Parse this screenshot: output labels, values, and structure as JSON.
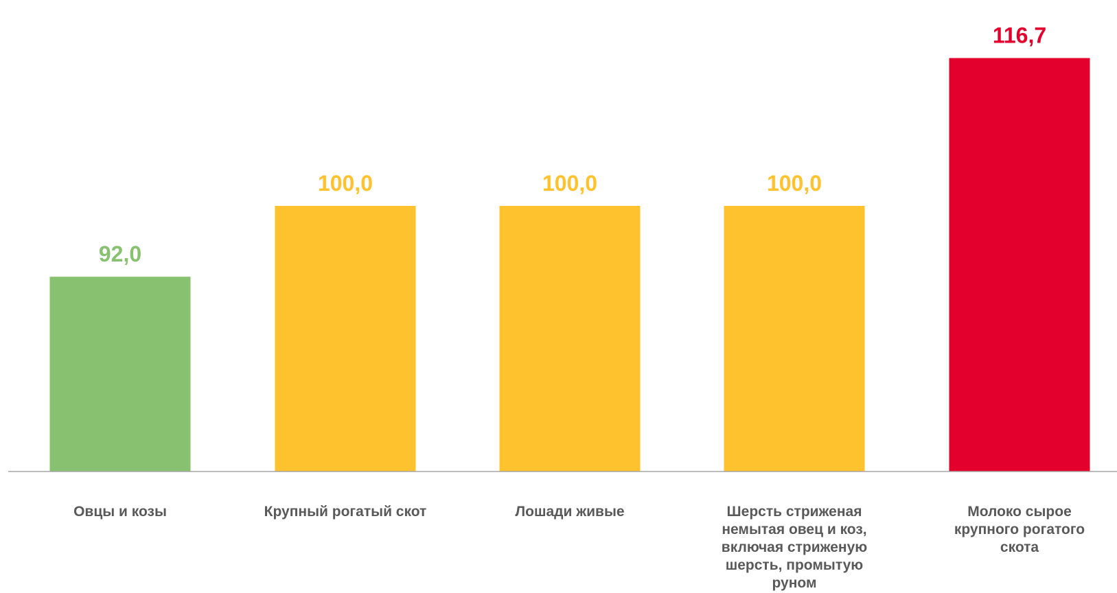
{
  "chart_data": {
    "type": "bar",
    "categories": [
      "Овцы и козы",
      "Крупный рогатый скот",
      "Лошади живые",
      "Шерсть стриженая немытая овец и коз, включая стриженую шерсть, промытую руном",
      "Молоко сырое крупного рогатого скота"
    ],
    "category_lines": [
      [
        "Овцы и козы"
      ],
      [
        "Крупный рогатый скот"
      ],
      [
        "Лошади живые"
      ],
      [
        "Шерсть стриженая",
        "немытая овец и коз,",
        "включая стриженую",
        "шерсть, промытую",
        "руном"
      ],
      [
        "Молоко сырое",
        "крупного рогатого",
        "скота"
      ]
    ],
    "values": [
      92.0,
      100.0,
      100.0,
      100.0,
      116.7
    ],
    "value_labels": [
      "92,0",
      "100,0",
      "100,0",
      "100,0",
      "116,7"
    ],
    "colors": [
      "#88C16F",
      "#FDC22E",
      "#FDC22E",
      "#FDC22E",
      "#E3002D"
    ],
    "title": "",
    "xlabel": "",
    "ylabel": "",
    "ylim": [
      70,
      120
    ],
    "grid": false,
    "legend": "none",
    "axis_color": "#A6A6A6",
    "category_label_color": "#595959"
  }
}
